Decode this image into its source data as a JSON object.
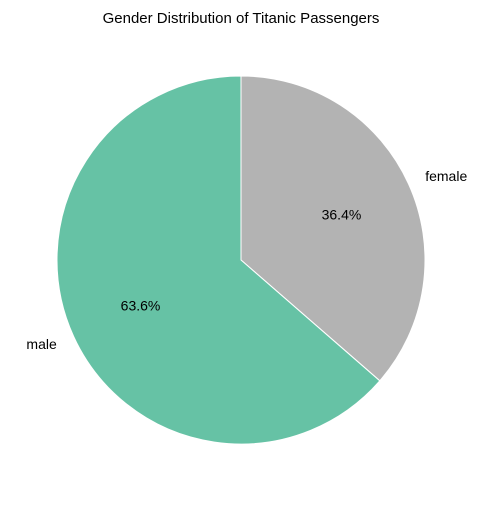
{
  "chart_data": {
    "type": "pie",
    "title": "Gender Distribution of Titanic Passengers",
    "start_angle_deg": 90,
    "direction": "clockwise",
    "slices": [
      {
        "label": "female",
        "value": 36.4,
        "pct_label": "36.4%",
        "color": "#b3b3b3"
      },
      {
        "label": "male",
        "value": 63.6,
        "pct_label": "63.6%",
        "color": "#66c2a5"
      }
    ],
    "wedge_edge_color": "#ffffff"
  }
}
